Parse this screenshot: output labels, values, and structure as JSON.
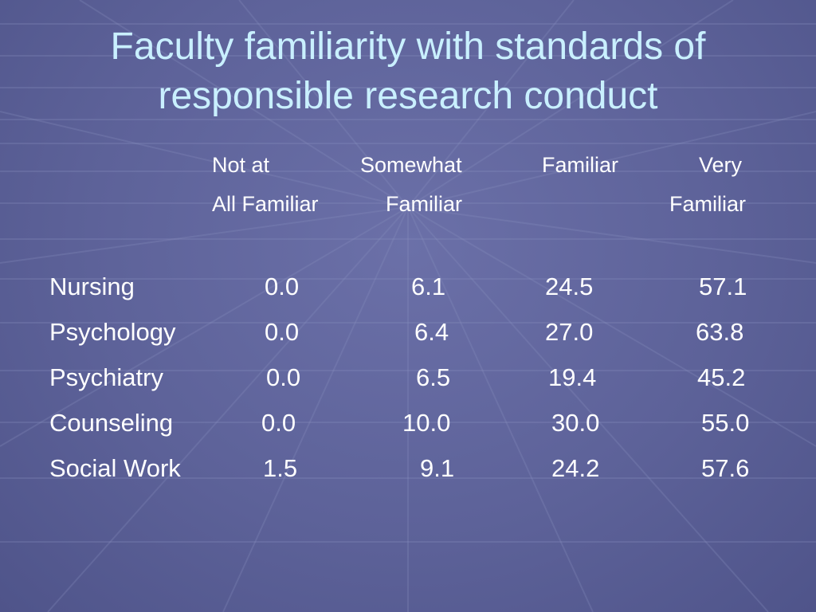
{
  "slide": {
    "title_line1": "Faculty familiarity with standards of",
    "title_line2": "responsible research conduct",
    "title_color": "#c9f0ff",
    "background_color": "#5d6299"
  },
  "table": {
    "headers": [
      {
        "line1": "Not at",
        "line2": "All Familiar"
      },
      {
        "line1": "Somewhat",
        "line2": "Familiar"
      },
      {
        "line1": "Familiar",
        "line2": ""
      },
      {
        "line1": "Very",
        "line2": "Familiar"
      }
    ],
    "rows": [
      {
        "label": "Nursing",
        "values": [
          "0.0",
          "6.1",
          "24.5",
          "57.1"
        ]
      },
      {
        "label": "Psychology",
        "values": [
          "0.0",
          "6.4",
          "27.0",
          "63.8"
        ]
      },
      {
        "label": "Psychiatry",
        "values": [
          "0.0",
          "6.5",
          "19.4",
          "45.2"
        ]
      },
      {
        "label": "Counseling",
        "values": [
          "0.0",
          "10.0",
          "30.0",
          "55.0"
        ]
      },
      {
        "label": "Social Work",
        "values": [
          "1.5",
          "9.1",
          "24.2",
          "57.6"
        ]
      }
    ]
  }
}
